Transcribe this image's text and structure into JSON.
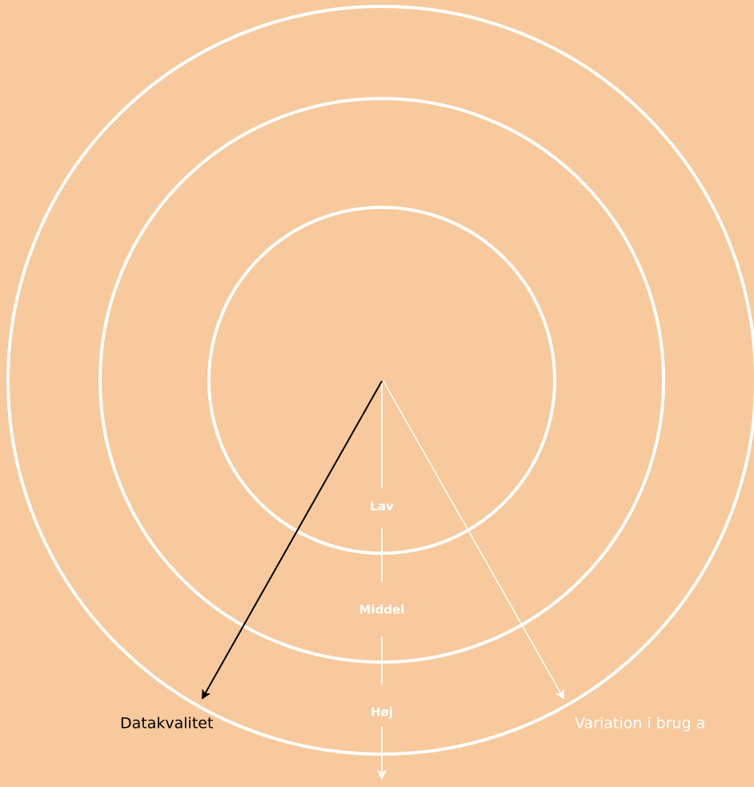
{
  "levels": [
    "Lav",
    "Middel",
    "Høj"
  ],
  "axes": {
    "left": "Datakvalitet",
    "right": "Variation i brug a"
  }
}
